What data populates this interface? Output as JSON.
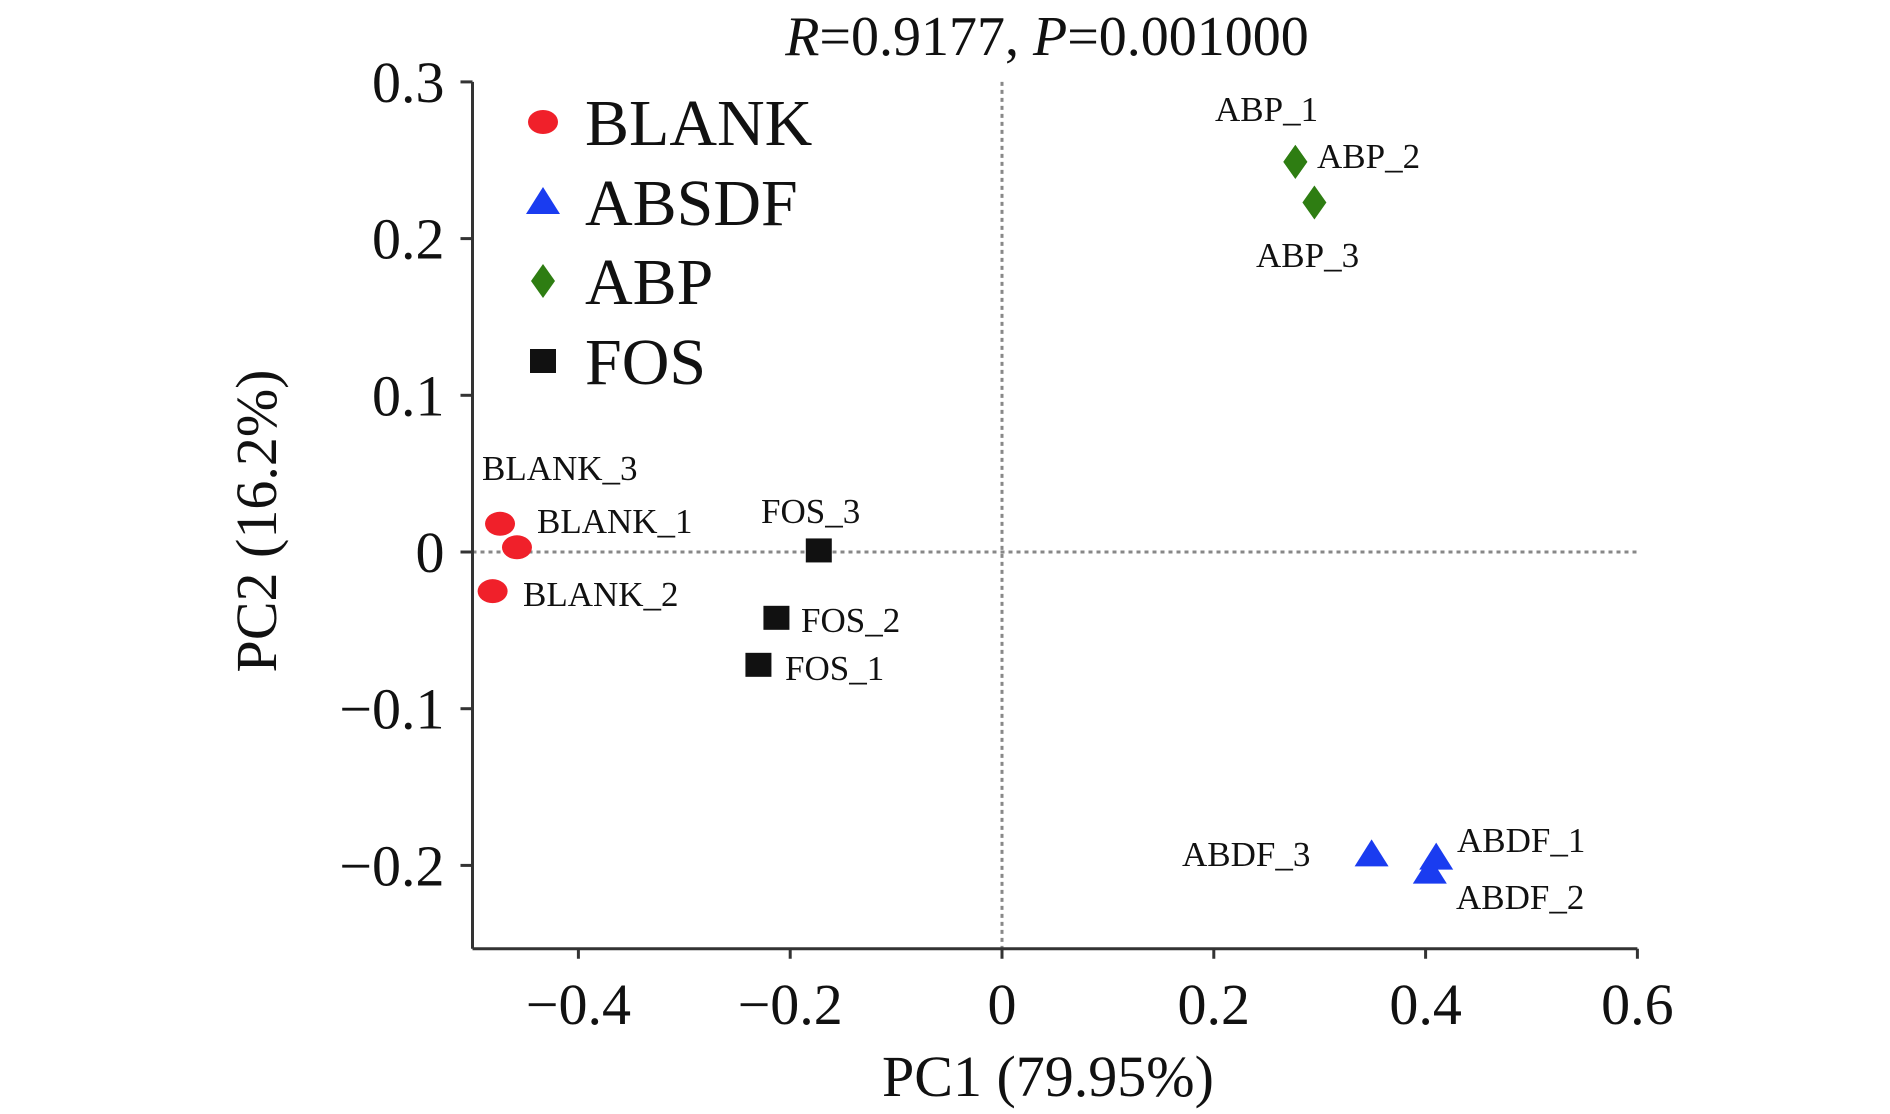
{
  "chart_data": {
    "type": "scatter",
    "title": "R=0.9177, P=0.001000",
    "title_parts": {
      "r_symbol": "R",
      "r_value": "=0.9177, ",
      "p_symbol": "P",
      "p_value": "=0.001000"
    },
    "xlabel": "PC1 (79.95%)",
    "ylabel": "PC2 (16.2%)",
    "xlim": [
      -0.5,
      0.6
    ],
    "ylim": [
      -0.25,
      0.3
    ],
    "xticks": [
      -0.4,
      -0.2,
      0,
      0.2,
      0.4,
      0.6
    ],
    "xtick_labels": [
      "−0.4",
      "−0.2",
      "0",
      "0.2",
      "0.4",
      "0.6"
    ],
    "yticks": [
      0.3,
      0.2,
      0.1,
      0,
      -0.1,
      -0.2
    ],
    "ytick_labels": [
      "0.3",
      "0.2",
      "0.1",
      "0",
      "−0.1",
      "−0.2"
    ],
    "reference_lines": {
      "x": 0,
      "y": 0,
      "style": "dotted"
    },
    "legend_position": "top-left",
    "series": [
      {
        "name": "BLANK",
        "marker": "circle",
        "color": "#f0202a",
        "points": [
          {
            "label": "BLANK_1",
            "x": -0.458,
            "y": 0.003
          },
          {
            "label": "BLANK_2",
            "x": -0.481,
            "y": -0.025
          },
          {
            "label": "BLANK_3",
            "x": -0.474,
            "y": 0.018
          }
        ]
      },
      {
        "name": "ABSDF",
        "marker": "triangle",
        "color": "#1a3cf0",
        "points": [
          {
            "label": "ABDF_1",
            "x": 0.41,
            "y": -0.195
          },
          {
            "label": "ABDF_2",
            "x": 0.404,
            "y": -0.204
          },
          {
            "label": "ABDF_3",
            "x": 0.349,
            "y": -0.193
          }
        ]
      },
      {
        "name": "ABP",
        "marker": "diamond",
        "color": "#2e7d12",
        "points": [
          {
            "label": "ABP_1",
            "x": 0.277,
            "y": 0.249
          },
          {
            "label": "ABP_2",
            "x": 0.277,
            "y": 0.249
          },
          {
            "label": "ABP_3",
            "x": 0.295,
            "y": 0.223
          }
        ]
      },
      {
        "name": "FOS",
        "marker": "square",
        "color": "#111111",
        "points": [
          {
            "label": "FOS_1",
            "x": -0.23,
            "y": -0.072
          },
          {
            "label": "FOS_2",
            "x": -0.213,
            "y": -0.042
          },
          {
            "label": "FOS_3",
            "x": -0.173,
            "y": 0.001
          }
        ]
      }
    ]
  }
}
